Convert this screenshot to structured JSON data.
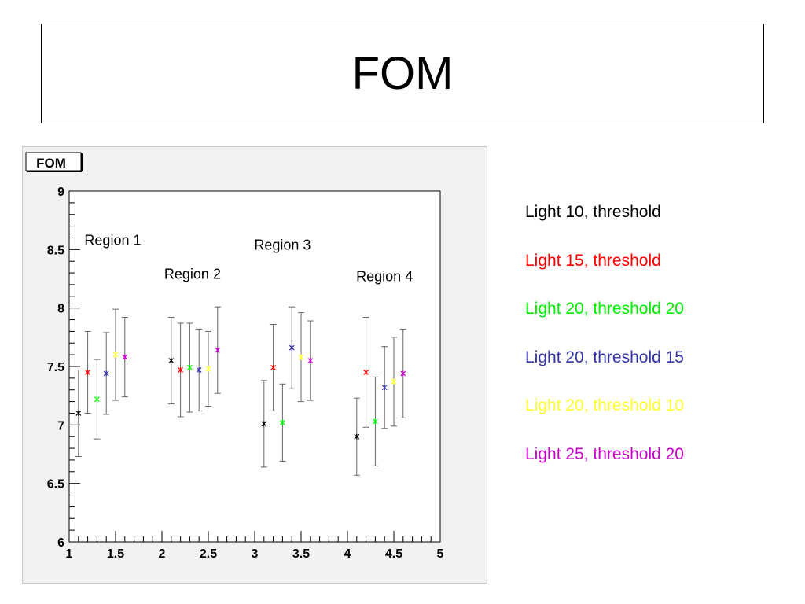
{
  "slide": {
    "title": "FOM"
  },
  "chart_data": {
    "type": "scatter",
    "title": "FOM",
    "xlabel": "",
    "ylabel": "",
    "xlim": [
      1,
      5
    ],
    "ylim": [
      6,
      9
    ],
    "xticks": [
      "1",
      "1.5",
      "2",
      "2.5",
      "3",
      "3.5",
      "4",
      "4.5",
      "5"
    ],
    "yticks": [
      "6",
      "6.5",
      "7",
      "7.5",
      "8",
      "8.5",
      "9"
    ],
    "grid": false,
    "legend_position": "right",
    "annotations": [
      {
        "text": "Region 1",
        "x": 1.47,
        "y": 8.54
      },
      {
        "text": "Region 2",
        "x": 2.33,
        "y": 8.25
      },
      {
        "text": "Region 3",
        "x": 3.3,
        "y": 8.5
      },
      {
        "text": "Region 4",
        "x": 4.4,
        "y": 8.23
      }
    ],
    "series": [
      {
        "name": "Light 10, threshold",
        "color": "#000000",
        "points": [
          {
            "x": 1.1,
            "y": 7.1,
            "yerr": 0.37
          },
          {
            "x": 2.1,
            "y": 7.55,
            "yerr": 0.37
          },
          {
            "x": 3.1,
            "y": 7.01,
            "yerr": 0.37
          },
          {
            "x": 4.1,
            "y": 6.9,
            "yerr": 0.33
          }
        ]
      },
      {
        "name": "Light 15, threshold",
        "color": "#ff0000",
        "points": [
          {
            "x": 1.2,
            "y": 7.45,
            "yerr": 0.35
          },
          {
            "x": 2.2,
            "y": 7.47,
            "yerr": 0.4
          },
          {
            "x": 3.2,
            "y": 7.49,
            "yerr": 0.37
          },
          {
            "x": 4.2,
            "y": 7.45,
            "yerr": 0.47
          }
        ]
      },
      {
        "name": "Light 20, threshold 20",
        "color": "#00ee00",
        "points": [
          {
            "x": 1.3,
            "y": 7.22,
            "yerr": 0.34
          },
          {
            "x": 2.3,
            "y": 7.49,
            "yerr": 0.38
          },
          {
            "x": 3.3,
            "y": 7.02,
            "yerr": 0.33
          },
          {
            "x": 4.3,
            "y": 7.03,
            "yerr": 0.38
          }
        ]
      },
      {
        "name": "Light 20, threshold 15",
        "color": "#3333aa",
        "points": [
          {
            "x": 1.4,
            "y": 7.44,
            "yerr": 0.35
          },
          {
            "x": 2.4,
            "y": 7.47,
            "yerr": 0.35
          },
          {
            "x": 3.4,
            "y": 7.66,
            "yerr": 0.35
          },
          {
            "x": 4.4,
            "y": 7.32,
            "yerr": 0.35
          }
        ]
      },
      {
        "name": "Light 20, threshold 10",
        "color": "#ffff33",
        "points": [
          {
            "x": 1.5,
            "y": 7.6,
            "yerr": 0.39
          },
          {
            "x": 2.5,
            "y": 7.48,
            "yerr": 0.32
          },
          {
            "x": 3.5,
            "y": 7.58,
            "yerr": 0.38
          },
          {
            "x": 4.5,
            "y": 7.37,
            "yerr": 0.38
          }
        ]
      },
      {
        "name": "Light 25, threshold 20",
        "color": "#cc00cc",
        "points": [
          {
            "x": 1.6,
            "y": 7.58,
            "yerr": 0.34
          },
          {
            "x": 2.6,
            "y": 7.64,
            "yerr": 0.37
          },
          {
            "x": 3.6,
            "y": 7.55,
            "yerr": 0.34
          },
          {
            "x": 4.6,
            "y": 7.44,
            "yerr": 0.38
          }
        ]
      }
    ]
  }
}
